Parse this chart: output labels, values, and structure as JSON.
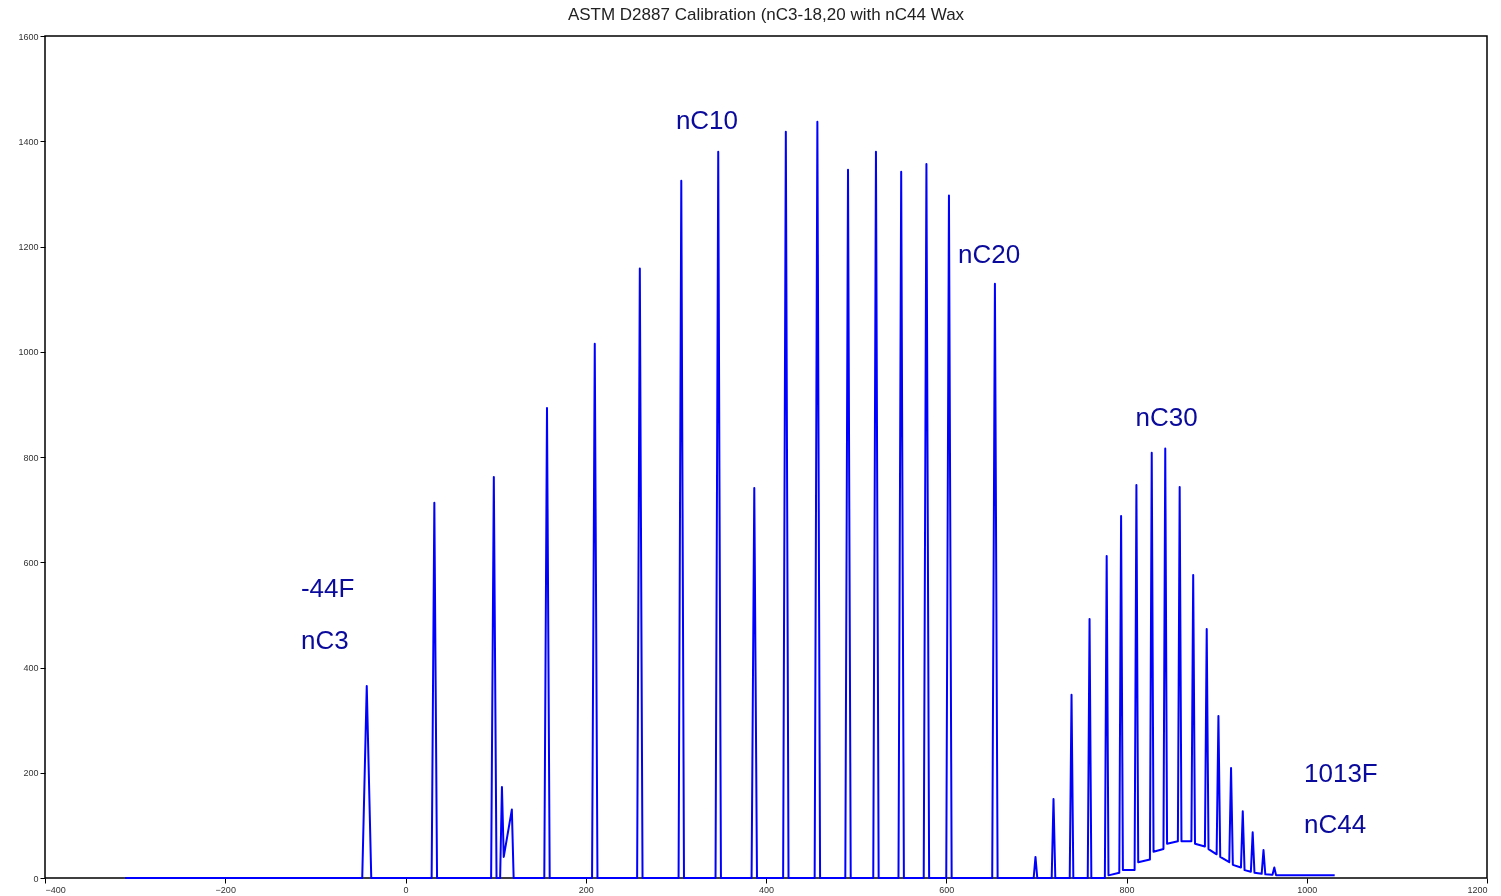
{
  "chart_data": {
    "type": "line",
    "title": "ASTM D2887 Calibration (nC3-18,20 with nC44 Wax",
    "series": [
      {
        "color": "#0000ff",
        "x": [
          -311,
          -48,
          -43,
          -38,
          29,
          32,
          35,
          95,
          98,
          101,
          105,
          107,
          109,
          118,
          120,
          154,
          157,
          160,
          207,
          210,
          213,
          257,
          260,
          263,
          303,
          306,
          309,
          344,
          347,
          350,
          384,
          387,
          390,
          419,
          422,
          425,
          454,
          457,
          460,
          488,
          491,
          494,
          519,
          522,
          525,
          547,
          550,
          553,
          575,
          578,
          581,
          600,
          603,
          606,
          651,
          654,
          657,
          697,
          699,
          701,
          717,
          719,
          721,
          737,
          739,
          741,
          757,
          759,
          761,
          776,
          778,
          780,
          792,
          794,
          796,
          809,
          811,
          813,
          826,
          828,
          830,
          841,
          843,
          845,
          857,
          859,
          861,
          872,
          874,
          876,
          887,
          889,
          891,
          900,
          902,
          904,
          914,
          916,
          918,
          927,
          929,
          931,
          938,
          940,
          942,
          950,
          952,
          954,
          962,
          964,
          966,
          1031
        ],
        "values": [
          0,
          0,
          365,
          0,
          0,
          713,
          0,
          0,
          762,
          0,
          0,
          173,
          40,
          130,
          0,
          0,
          893,
          0,
          0,
          1015,
          0,
          0,
          1158,
          0,
          0,
          1325,
          0,
          0,
          1380,
          0,
          0,
          741,
          0,
          0,
          1418,
          0,
          0,
          1437,
          0,
          0,
          1346,
          0,
          0,
          1380,
          0,
          0,
          1342,
          0,
          0,
          1357,
          0,
          0,
          1297,
          0,
          0,
          1129,
          0,
          0,
          40,
          0,
          0,
          150,
          0,
          0,
          348,
          0,
          0,
          492,
          0,
          0,
          612,
          5,
          10,
          688,
          15,
          15,
          747,
          30,
          35,
          808,
          50,
          55,
          816,
          65,
          70,
          743,
          70,
          70,
          576,
          65,
          60,
          473,
          55,
          45,
          308,
          40,
          30,
          209,
          25,
          20,
          127,
          15,
          12,
          87,
          10,
          8,
          53,
          7,
          6,
          20,
          5,
          5
        ]
      }
    ],
    "annotations": [
      "-44F",
      "nC3",
      "nC10",
      "nC20",
      "nC30",
      "1013F",
      "nC44"
    ],
    "xlim": [
      -400,
      1200
    ],
    "xticks": [
      -400,
      -200,
      0,
      200,
      400,
      600,
      800,
      1000,
      1200
    ],
    "ylim": [
      0,
      1600
    ],
    "yticks": [
      0,
      200,
      400,
      600,
      800,
      1000,
      1200,
      1400,
      1600
    ],
    "grid": false,
    "marker": "none",
    "line_style": "solid"
  }
}
